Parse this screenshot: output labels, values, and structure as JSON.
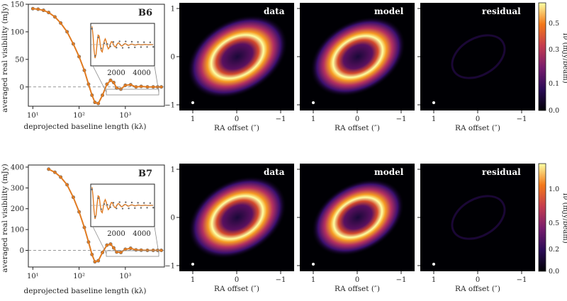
{
  "vis_xlabel": "deprojected baseline length (kλ)",
  "vis_ylabel": "averaged real visibility (mJy)",
  "img_xlabel": "RA offset  (″)",
  "rows": [
    {
      "band": "B6",
      "panel_titles": [
        "data",
        "model",
        "residual"
      ],
      "colorbar_label": "Iν (mJy/beam)",
      "colorbar_ticks": [
        "0.5",
        "0.3",
        "0.1",
        "0.0"
      ],
      "vis_yticks": [
        "0",
        "50",
        "100",
        "150"
      ],
      "inset_xticks": [
        "2000",
        "4000"
      ]
    },
    {
      "band": "B7",
      "panel_titles": [
        "data",
        "model",
        "residual"
      ],
      "colorbar_label": "Iν (mJy/beam)",
      "colorbar_ticks": [
        "1.0",
        "0.5",
        "0.2",
        "0.0"
      ],
      "vis_yticks": [
        "0",
        "100",
        "200",
        "300",
        "400"
      ],
      "inset_xticks": [
        "2000",
        "4000"
      ]
    }
  ],
  "vis_xticks": [
    "10¹",
    "10²",
    "10³"
  ],
  "img_xticks": [
    "1",
    "0",
    "−1"
  ],
  "img_yticks": [
    "1",
    "0",
    "−1"
  ],
  "colors": {
    "model_line": "#e07b22",
    "data_points": "#6b6b6b",
    "cmap_low": "#000004",
    "cmap_high": "#fcffa4"
  },
  "chart_data": [
    {
      "type": "scatter",
      "band": "B6",
      "xscale": "log",
      "xlim": [
        8,
        7000
      ],
      "ylim": [
        -35,
        150
      ],
      "series": [
        {
          "x": [
            10,
            13,
            17,
            22,
            30,
            40,
            55,
            75,
            100,
            130,
            160,
            190,
            220,
            260,
            320,
            400,
            480,
            560,
            650,
            800,
            1000,
            1300,
            1700,
            2200,
            3000,
            4000,
            5000,
            6000
          ],
          "y": [
            142,
            141,
            139,
            135,
            127,
            116,
            100,
            78,
            55,
            30,
            5,
            -15,
            -28,
            -30,
            -15,
            5,
            12,
            8,
            -2,
            -4,
            3,
            4,
            0,
            1,
            0,
            0,
            0,
            0
          ]
        }
      ]
    },
    {
      "type": "scatter",
      "band": "B7",
      "xscale": "log",
      "xlim": [
        8,
        7000
      ],
      "ylim": [
        -80,
        410
      ],
      "series": [
        {
          "x": [
            22,
            30,
            40,
            55,
            75,
            100,
            130,
            160,
            190,
            220,
            260,
            320,
            400,
            480,
            560,
            650,
            800,
            1000,
            1300,
            1700,
            2200,
            3000,
            4000,
            5000,
            6000
          ],
          "y": [
            390,
            375,
            352,
            315,
            255,
            185,
            110,
            40,
            -20,
            -55,
            -50,
            -10,
            25,
            30,
            12,
            -8,
            -10,
            5,
            10,
            2,
            1,
            0,
            0,
            0,
            0
          ]
        }
      ]
    }
  ]
}
